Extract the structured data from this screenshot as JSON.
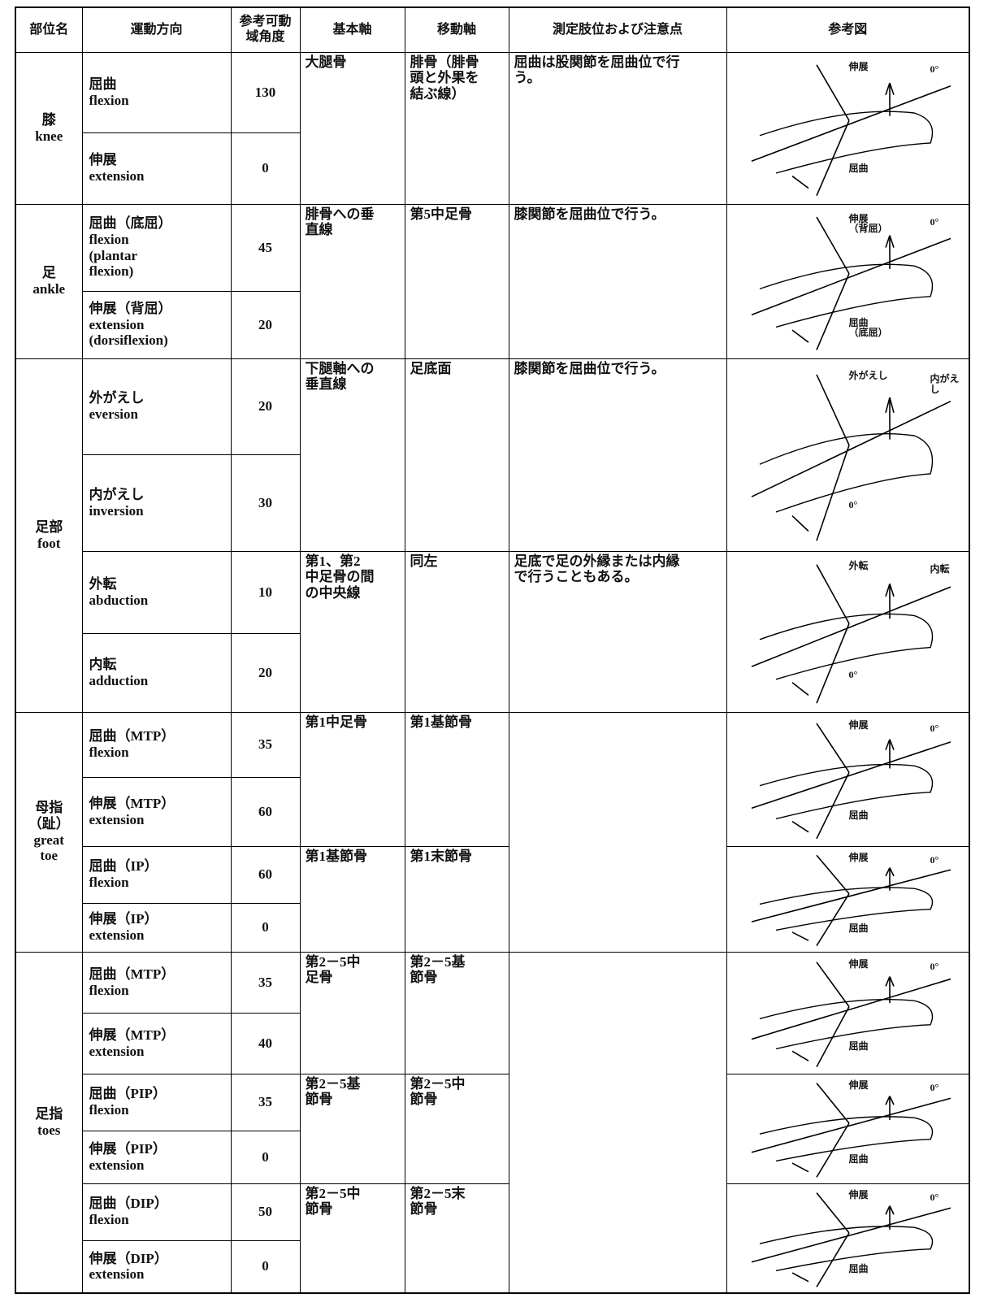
{
  "table": {
    "columns": [
      "部位名",
      "運動方向",
      "参考可動\n域角度",
      "基本軸",
      "移動軸",
      "測定肢位および注意点",
      "参考図"
    ],
    "sections": [
      {
        "part": "膝\nknee",
        "note_groups": [
          {
            "note": "屈曲は股関節を屈曲位で行\nう。",
            "axis_groups": [
              {
                "basic": "大腿骨",
                "moving": "腓骨（腓骨\n頭と外果を\n結ぶ線）",
                "figure": [
                  "伸展",
                  "0°",
                  "屈曲"
                ],
                "motions": [
                  {
                    "name": "屈曲\nflexion",
                    "range": 130
                  },
                  {
                    "name": "伸展\nextension",
                    "range": 0
                  }
                ]
              }
            ]
          }
        ]
      },
      {
        "part": "足\nankle",
        "note_groups": [
          {
            "note": "膝関節を屈曲位で行う。",
            "axis_groups": [
              {
                "basic": "腓骨への垂\n直線",
                "moving": "第5中足骨",
                "figure": [
                  "伸展\n（背屈）",
                  "0°",
                  "屈曲\n（底屈）"
                ],
                "motions": [
                  {
                    "name": "屈曲（底屈）\nflexion\n(plantar\nflexion)",
                    "range": 45
                  },
                  {
                    "name": "伸展（背屈）\nextension\n(dorsiflexion)",
                    "range": 20
                  }
                ]
              }
            ]
          }
        ]
      },
      {
        "part": "足部\nfoot",
        "note_groups": [
          {
            "note": "膝関節を屈曲位で行う。",
            "axis_groups": [
              {
                "basic": "下腿軸への\n垂直線",
                "moving": "足底面",
                "figure": [
                  "外がえし",
                  "内がえし",
                  "0°"
                ],
                "motions": [
                  {
                    "name": "外がえし\neversion",
                    "range": 20
                  },
                  {
                    "name": "内がえし\ninversion",
                    "range": 30
                  }
                ]
              }
            ]
          },
          {
            "note": "足底で足の外縁または内縁\nで行うこともある。",
            "axis_groups": [
              {
                "basic": "第1、第2\n中足骨の間\nの中央線",
                "moving": "同左",
                "figure": [
                  "外転",
                  "内転",
                  "0°"
                ],
                "motions": [
                  {
                    "name": "外転\nabduction",
                    "range": 10
                  },
                  {
                    "name": "内転\nadduction",
                    "range": 20
                  }
                ]
              }
            ]
          }
        ]
      },
      {
        "part": "母指（趾）\ngreat\ntoe",
        "note_groups": [
          {
            "axis_groups": [
              {
                "basic": "第1中足骨",
                "moving": "第1基節骨",
                "figure": [
                  "伸展",
                  "0°",
                  "屈曲"
                ],
                "motions": [
                  {
                    "name": "屈曲（MTP）\nflexion",
                    "range": 35
                  },
                  {
                    "name": "伸展（MTP）\nextension",
                    "range": 60
                  }
                ]
              },
              {
                "basic": "第1基節骨",
                "moving": "第1末節骨",
                "figure": [
                  "伸展",
                  "0°",
                  "屈曲"
                ],
                "motions": [
                  {
                    "name": "屈曲（IP）\nflexion",
                    "range": 60
                  },
                  {
                    "name": "伸展（IP）\nextension",
                    "range": 0
                  }
                ]
              }
            ]
          }
        ]
      },
      {
        "part": "足指\ntoes",
        "note_groups": [
          {
            "axis_groups": [
              {
                "basic": "第2－5中\n足骨",
                "moving": "第2－5基\n節骨",
                "figure": [
                  "伸展",
                  "0°",
                  "屈曲"
                ],
                "motions": [
                  {
                    "name": "屈曲（MTP）\nflexion",
                    "range": 35
                  },
                  {
                    "name": "伸展（MTP）\nextension",
                    "range": 40
                  }
                ]
              },
              {
                "basic": "第2－5基\n節骨",
                "moving": "第2－5中\n節骨",
                "figure": [
                  "伸展",
                  "0°",
                  "屈曲"
                ],
                "motions": [
                  {
                    "name": "屈曲（PIP）\nflexion",
                    "range": 35
                  },
                  {
                    "name": "伸展（PIP）\nextension",
                    "range": 0
                  }
                ]
              },
              {
                "basic": "第2－5中\n節骨",
                "moving": "第2－5末\n節骨",
                "figure": [
                  "伸展",
                  "0°",
                  "屈曲"
                ],
                "motions": [
                  {
                    "name": "屈曲（DIP）\nflexion",
                    "range": 50
                  },
                  {
                    "name": "伸展（DIP）\nextension",
                    "range": 0
                  }
                ]
              }
            ]
          }
        ]
      }
    ]
  }
}
